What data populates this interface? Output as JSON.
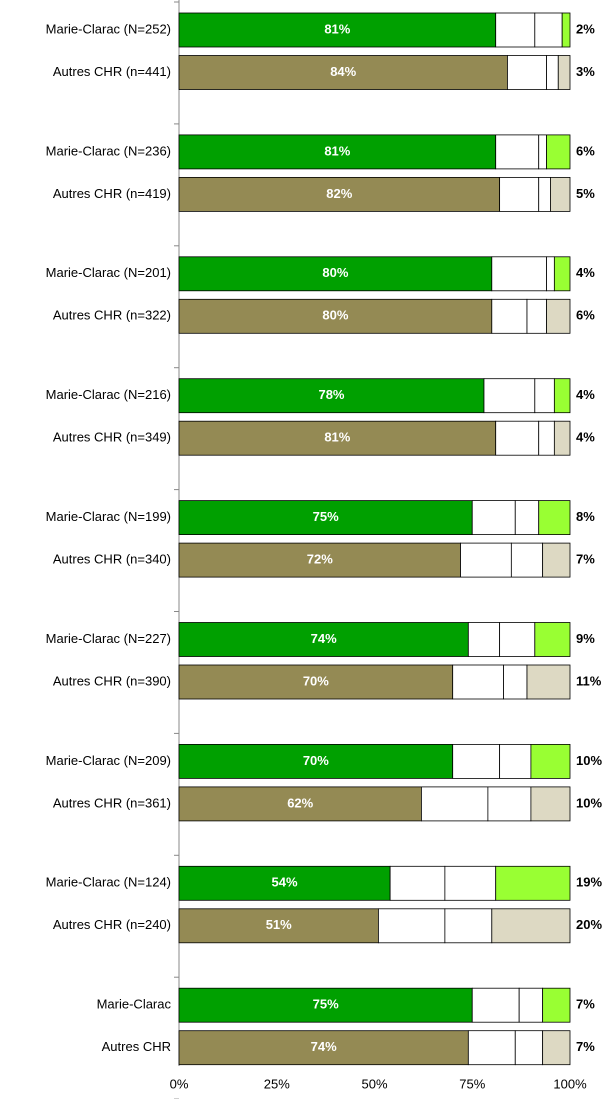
{
  "chart_data": {
    "type": "stacked-bar-horizontal",
    "categories": [
      "Marie-Clarac (N=252)",
      "Autres CHR (n=441)",
      "Marie-Clarac (N=236)",
      "Autres CHR (n=419)",
      "Marie-Clarac (N=201)",
      "Autres CHR (n=322)",
      "Marie-Clarac (N=216)",
      "Autres CHR (n=349)",
      "Marie-Clarac (N=199)",
      "Autres CHR (n=340)",
      "Marie-Clarac (N=227)",
      "Autres CHR (n=390)",
      "Marie-Clarac (N=209)",
      "Autres CHR (n=361)",
      "Marie-Clarac (N=124)",
      "Autres CHR (n=240)",
      "Marie-Clarac",
      "Autres CHR"
    ],
    "series": [
      {
        "colors": [
          "#00a000",
          "#948a54",
          "#00a000",
          "#948a54",
          "#00a000",
          "#948a54",
          "#00a000",
          "#948a54",
          "#00a000",
          "#948a54",
          "#00a000",
          "#948a54",
          "#00a000",
          "#948a54",
          "#00a000",
          "#948a54",
          "#00a000",
          "#948a54"
        ],
        "values": [
          81,
          84,
          81,
          82,
          80,
          80,
          78,
          81,
          75,
          72,
          74,
          70,
          70,
          62,
          54,
          51,
          75,
          74
        ],
        "value_labels": [
          "81%",
          "84%",
          "81%",
          "82%",
          "80%",
          "80%",
          "78%",
          "81%",
          "75%",
          "72%",
          "74%",
          "70%",
          "70%",
          "62%",
          "54%",
          "51%",
          "75%",
          "74%"
        ]
      },
      {
        "color": "#ffffff",
        "values": [
          10,
          10,
          11,
          10,
          14,
          9,
          13,
          11,
          11,
          13,
          8,
          13,
          12,
          17,
          14,
          17,
          12,
          12
        ]
      },
      {
        "color": "#ffffff",
        "values": [
          7,
          3,
          2,
          3,
          2,
          5,
          5,
          4,
          6,
          8,
          9,
          6,
          8,
          11,
          13,
          12,
          6,
          7
        ]
      },
      {
        "colors": [
          "#99ff33",
          "#ddd9c3",
          "#99ff33",
          "#ddd9c3",
          "#99ff33",
          "#ddd9c3",
          "#99ff33",
          "#ddd9c3",
          "#99ff33",
          "#ddd9c3",
          "#99ff33",
          "#ddd9c3",
          "#99ff33",
          "#ddd9c3",
          "#99ff33",
          "#ddd9c3",
          "#99ff33",
          "#ddd9c3"
        ],
        "values": [
          2,
          3,
          6,
          5,
          4,
          6,
          4,
          4,
          8,
          7,
          9,
          11,
          10,
          10,
          19,
          20,
          7,
          7
        ],
        "value_labels": [
          "2%",
          "3%",
          "6%",
          "5%",
          "4%",
          "6%",
          "4%",
          "4%",
          "8%",
          "7%",
          "9%",
          "11%",
          "10%",
          "10%",
          "19%",
          "20%",
          "7%",
          "7%"
        ]
      }
    ],
    "xlim": [
      0,
      100
    ],
    "xticks": [
      {
        "value": 0,
        "label": "0%"
      },
      {
        "value": 25,
        "label": "25%"
      },
      {
        "value": 50,
        "label": "50%"
      },
      {
        "value": 75,
        "label": "75%"
      },
      {
        "value": 100,
        "label": "100%"
      }
    ]
  }
}
